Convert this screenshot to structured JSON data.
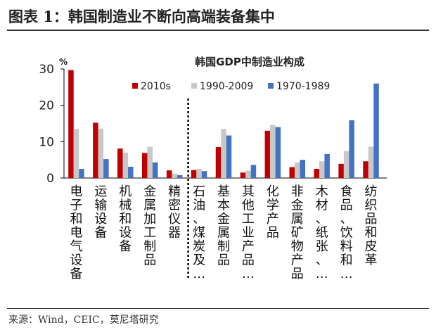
{
  "figure_title": "图表 1：韩国制造业不断向高端装备集中",
  "source": "来源：Wind，CEIC，莫尼塔研究",
  "chart_data": {
    "type": "bar",
    "title": "韩国GDP中制造业构成",
    "yunit": "%",
    "ylim": [
      0,
      30
    ],
    "yticks": [
      0,
      10,
      20,
      30
    ],
    "legend_position": "top",
    "grid": false,
    "divider_after_index": 4,
    "categories": [
      "电子和电气设备",
      "运输设备",
      "机械和设备",
      "金属加工制品",
      "精密仪器",
      "石油、煤炭及…",
      "基本金属制品",
      "其他工业产品…",
      "化学产品",
      "非金属矿物产品",
      "木材、纸张、…",
      "食品、饮料和…",
      "纺织品和皮革"
    ],
    "series": [
      {
        "name": "2010s",
        "color": "#c00000",
        "values": [
          29.7,
          15.2,
          8.1,
          6.9,
          2.1,
          2.2,
          8.5,
          1.5,
          13.0,
          3.0,
          2.5,
          3.9,
          4.6
        ]
      },
      {
        "name": "1990-2009",
        "color": "#c8c8c8",
        "values": [
          13.5,
          13.6,
          7.0,
          8.6,
          1.2,
          2.5,
          13.5,
          2.0,
          14.6,
          4.3,
          4.6,
          7.4,
          8.6
        ]
      },
      {
        "name": "1970-1989",
        "color": "#4472c4",
        "values": [
          2.5,
          5.2,
          3.1,
          4.3,
          0.8,
          1.9,
          11.7,
          3.6,
          14.0,
          5.0,
          6.6,
          15.9,
          26.0
        ]
      }
    ]
  }
}
